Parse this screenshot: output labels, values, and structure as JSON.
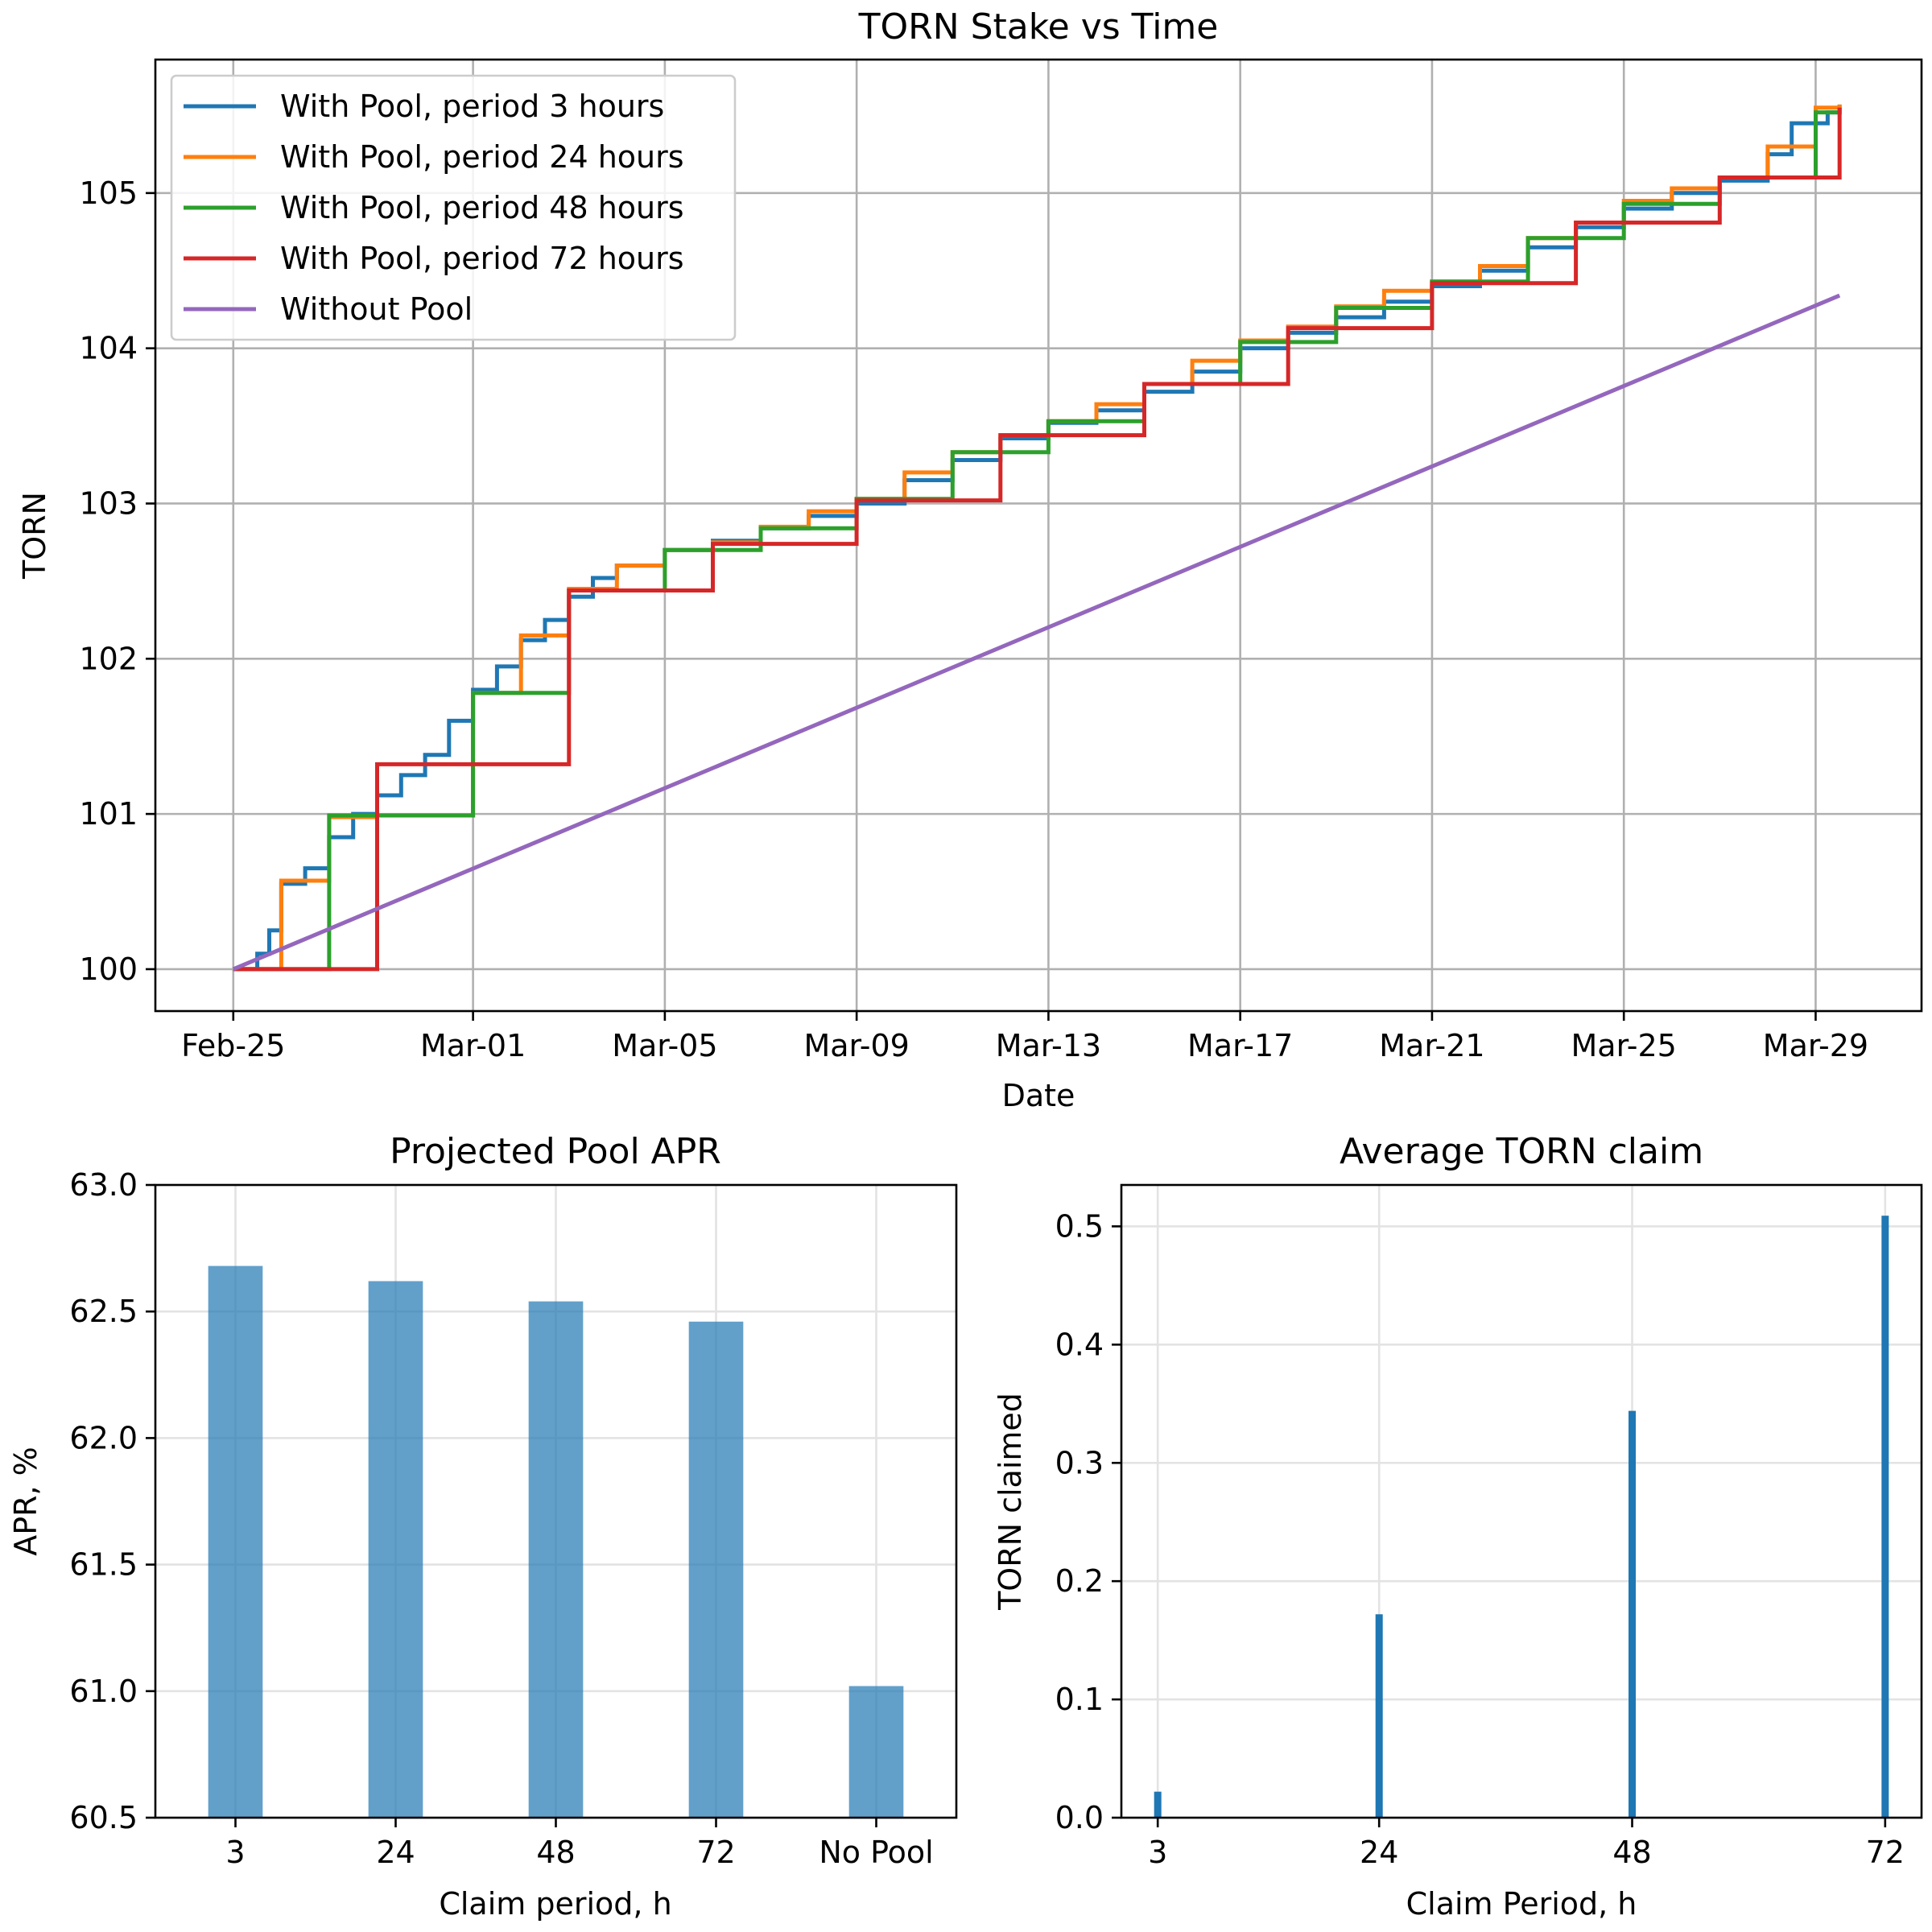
{
  "chart_data": [
    {
      "type": "line",
      "title": "TORN Stake vs Time",
      "xlabel": "Date",
      "ylabel": "TORN",
      "x_ticks": [
        "Feb-25",
        "Mar-01",
        "Mar-05",
        "Mar-09",
        "Mar-13",
        "Mar-17",
        "Mar-21",
        "Mar-25",
        "Mar-29"
      ],
      "y_ticks": [
        "100",
        "101",
        "102",
        "103",
        "104",
        "105"
      ],
      "xlim": [
        "2024-02-23 09:00",
        "2024-03-31 05:00"
      ],
      "ylim": [
        99.73,
        105.86
      ],
      "grid": true,
      "legend_position": "top-left",
      "series": [
        {
          "name": "With Pool, period 3 hours",
          "color": "#1f77b4",
          "step_hours": 3,
          "points": [
            [
              "2024-02-25 00:00",
              100.0
            ],
            [
              "2024-02-25 12:00",
              100.1
            ],
            [
              "2024-02-25 18:00",
              100.25
            ],
            [
              "2024-02-26 00:00",
              100.55
            ],
            [
              "2024-02-26 12:00",
              100.65
            ],
            [
              "2024-02-27 00:00",
              100.85
            ],
            [
              "2024-02-27 12:00",
              101.0
            ],
            [
              "2024-02-28 00:00",
              101.12
            ],
            [
              "2024-02-28 12:00",
              101.25
            ],
            [
              "2024-02-29 00:00",
              101.38
            ],
            [
              "2024-02-29 12:00",
              101.6
            ],
            [
              "2024-03-01 00:00",
              101.8
            ],
            [
              "2024-03-01 12:00",
              101.95
            ],
            [
              "2024-03-02 00:00",
              102.12
            ],
            [
              "2024-03-02 12:00",
              102.25
            ],
            [
              "2024-03-03 00:00",
              102.4
            ],
            [
              "2024-03-03 12:00",
              102.52
            ],
            [
              "2024-03-04 00:00",
              102.6
            ],
            [
              "2024-03-05 00:00",
              102.7
            ],
            [
              "2024-03-06 00:00",
              102.76
            ],
            [
              "2024-03-07 00:00",
              102.84
            ],
            [
              "2024-03-08 00:00",
              102.92
            ],
            [
              "2024-03-09 00:00",
              103.0
            ],
            [
              "2024-03-10 00:00",
              103.15
            ],
            [
              "2024-03-11 00:00",
              103.28
            ],
            [
              "2024-03-12 00:00",
              103.42
            ],
            [
              "2024-03-13 00:00",
              103.52
            ],
            [
              "2024-03-14 00:00",
              103.6
            ],
            [
              "2024-03-15 00:00",
              103.72
            ],
            [
              "2024-03-16 00:00",
              103.85
            ],
            [
              "2024-03-17 00:00",
              104.0
            ],
            [
              "2024-03-18 00:00",
              104.1
            ],
            [
              "2024-03-19 00:00",
              104.2
            ],
            [
              "2024-03-20 00:00",
              104.3
            ],
            [
              "2024-03-21 00:00",
              104.4
            ],
            [
              "2024-03-22 00:00",
              104.5
            ],
            [
              "2024-03-23 00:00",
              104.65
            ],
            [
              "2024-03-24 00:00",
              104.78
            ],
            [
              "2024-03-25 00:00",
              104.9
            ],
            [
              "2024-03-26 00:00",
              105.0
            ],
            [
              "2024-03-27 00:00",
              105.08
            ],
            [
              "2024-03-28 00:00",
              105.25
            ],
            [
              "2024-03-28 12:00",
              105.45
            ],
            [
              "2024-03-29 06:00",
              105.52
            ],
            [
              "2024-03-29 12:00",
              105.57
            ]
          ]
        },
        {
          "name": "With Pool, period 24 hours",
          "color": "#ff7f0e",
          "step_hours": 24,
          "points": [
            [
              "2024-02-25 00:00",
              100.0
            ],
            [
              "2024-02-26 00:00",
              100.57
            ],
            [
              "2024-02-27 00:00",
              100.98
            ],
            [
              "2024-02-28 00:00",
              100.99
            ],
            [
              "2024-03-01 00:00",
              101.78
            ],
            [
              "2024-03-02 00:00",
              102.15
            ],
            [
              "2024-03-03 00:00",
              102.45
            ],
            [
              "2024-03-04 00:00",
              102.6
            ],
            [
              "2024-03-05 00:00",
              102.7
            ],
            [
              "2024-03-06 00:00",
              102.75
            ],
            [
              "2024-03-07 00:00",
              102.85
            ],
            [
              "2024-03-08 00:00",
              102.95
            ],
            [
              "2024-03-09 00:00",
              103.03
            ],
            [
              "2024-03-10 00:00",
              103.2
            ],
            [
              "2024-03-11 00:00",
              103.33
            ],
            [
              "2024-03-12 00:00",
              103.44
            ],
            [
              "2024-03-13 00:00",
              103.53
            ],
            [
              "2024-03-14 00:00",
              103.64
            ],
            [
              "2024-03-15 00:00",
              103.77
            ],
            [
              "2024-03-16 00:00",
              103.92
            ],
            [
              "2024-03-17 00:00",
              104.05
            ],
            [
              "2024-03-18 00:00",
              104.14
            ],
            [
              "2024-03-19 00:00",
              104.27
            ],
            [
              "2024-03-20 00:00",
              104.37
            ],
            [
              "2024-03-21 00:00",
              104.43
            ],
            [
              "2024-03-22 00:00",
              104.53
            ],
            [
              "2024-03-23 00:00",
              104.71
            ],
            [
              "2024-03-24 00:00",
              104.81
            ],
            [
              "2024-03-25 00:00",
              104.95
            ],
            [
              "2024-03-26 00:00",
              105.03
            ],
            [
              "2024-03-27 00:00",
              105.1
            ],
            [
              "2024-03-28 00:00",
              105.3
            ],
            [
              "2024-03-29 00:00",
              105.55
            ],
            [
              "2024-03-29 12:00",
              105.57
            ]
          ]
        },
        {
          "name": "With Pool, period 48 hours",
          "color": "#2ca02c",
          "step_hours": 48,
          "points": [
            [
              "2024-02-25 00:00",
              100.0
            ],
            [
              "2024-02-27 00:00",
              100.99
            ],
            [
              "2024-03-01 00:00",
              101.78
            ],
            [
              "2024-03-03 00:00",
              102.44
            ],
            [
              "2024-03-05 00:00",
              102.7
            ],
            [
              "2024-03-07 00:00",
              102.84
            ],
            [
              "2024-03-09 00:00",
              103.03
            ],
            [
              "2024-03-11 00:00",
              103.33
            ],
            [
              "2024-03-13 00:00",
              103.53
            ],
            [
              "2024-03-15 00:00",
              103.77
            ],
            [
              "2024-03-17 00:00",
              104.04
            ],
            [
              "2024-03-19 00:00",
              104.26
            ],
            [
              "2024-03-21 00:00",
              104.43
            ],
            [
              "2024-03-23 00:00",
              104.71
            ],
            [
              "2024-03-25 00:00",
              104.93
            ],
            [
              "2024-03-27 00:00",
              105.1
            ],
            [
              "2024-03-29 00:00",
              105.52
            ],
            [
              "2024-03-29 12:00",
              105.55
            ]
          ]
        },
        {
          "name": "With Pool, period 72 hours",
          "color": "#d62728",
          "step_hours": 72,
          "points": [
            [
              "2024-02-25 00:00",
              100.0
            ],
            [
              "2024-02-28 00:00",
              101.32
            ],
            [
              "2024-03-03 00:00",
              102.44
            ],
            [
              "2024-03-06 00:00",
              102.74
            ],
            [
              "2024-03-09 00:00",
              103.02
            ],
            [
              "2024-03-12 00:00",
              103.44
            ],
            [
              "2024-03-15 00:00",
              103.77
            ],
            [
              "2024-03-18 00:00",
              104.13
            ],
            [
              "2024-03-21 00:00",
              104.42
            ],
            [
              "2024-03-24 00:00",
              104.81
            ],
            [
              "2024-03-27 00:00",
              105.1
            ],
            [
              "2024-03-29 12:00",
              105.55
            ]
          ]
        },
        {
          "name": "Without Pool",
          "color": "#9467bd",
          "points": [
            [
              "2024-02-25 00:00",
              100.0
            ],
            [
              "2024-03-29 12:00",
              104.34
            ]
          ]
        }
      ]
    },
    {
      "type": "bar",
      "title": "Projected Pool APR",
      "xlabel": "Claim period, h",
      "ylabel": "APR, %",
      "categories": [
        "3",
        "24",
        "48",
        "72",
        "No Pool"
      ],
      "values": [
        62.68,
        62.62,
        62.54,
        62.46,
        61.02
      ],
      "ylim": [
        60.5,
        63.0
      ],
      "y_ticks": [
        "60.5",
        "61.0",
        "61.5",
        "62.0",
        "62.5",
        "63.0"
      ],
      "color": "#1f77b4",
      "grid": true
    },
    {
      "type": "bar",
      "title": "Average TORN claim",
      "xlabel": "Claim Period, h",
      "ylabel": "TORN claimed",
      "categories": [
        "3",
        "24",
        "48",
        "72"
      ],
      "values": [
        0.022,
        0.172,
        0.344,
        0.509
      ],
      "ylim": [
        0.0,
        0.535
      ],
      "y_ticks": [
        "0.0",
        "0.1",
        "0.2",
        "0.3",
        "0.4",
        "0.5"
      ],
      "color": "#1f77b4",
      "grid": true
    }
  ]
}
